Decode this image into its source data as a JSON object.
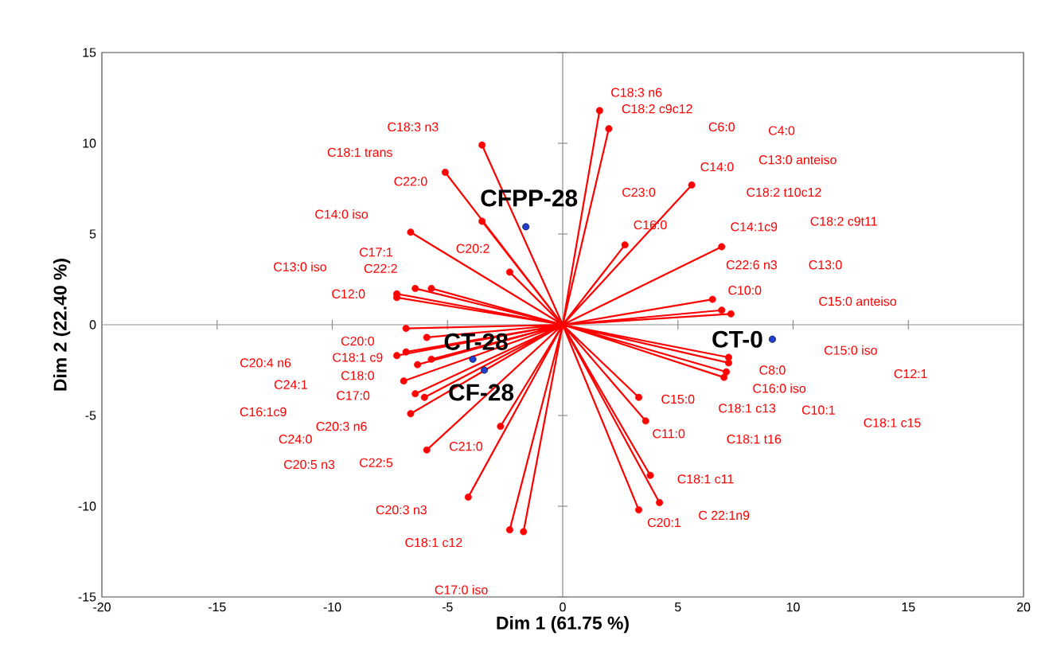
{
  "chart_data": {
    "type": "scatter",
    "xlabel": "Dim 1 (61.75 %)",
    "ylabel": "Dim 2 (22.40 %)",
    "xlim": [
      -20,
      20
    ],
    "ylim": [
      -15,
      15
    ],
    "xticks": [
      -20,
      -15,
      -10,
      -5,
      0,
      5,
      10,
      15,
      20
    ],
    "yticks": [
      -15,
      -10,
      -5,
      0,
      5,
      10,
      15
    ],
    "series": [
      {
        "type": "line",
        "marker": "none",
        "color": "#ff0000",
        "x": [
          0,
          -3.5,
          0,
          -5.1,
          0,
          -3.5,
          0,
          -6.6,
          0,
          -2.3,
          0,
          -6.4,
          0,
          -5.7,
          0,
          -7.2,
          0,
          -7.2,
          0,
          -6.8,
          0,
          1.6,
          0,
          2.0,
          0,
          5.6,
          0,
          2.7,
          0,
          6.9,
          0,
          6.5,
          0,
          6.9,
          0,
          7.3,
          0,
          -5.9,
          0,
          -6.8,
          0,
          -7.2,
          0,
          -6.3,
          0,
          -5.7,
          0,
          -6.9,
          0,
          -6.4,
          0,
          -6.0,
          0,
          -6.6,
          0,
          -2.7,
          0,
          -5.9,
          0,
          -4.1,
          0,
          -2.3,
          0,
          -1.7,
          0,
          7.2,
          0,
          7.2,
          0,
          7.1,
          0,
          7.0,
          0,
          3.3,
          0,
          3.6,
          0,
          3.8,
          0,
          4.2,
          0,
          3.3
        ],
        "values": [
          0,
          9.9,
          0,
          8.4,
          0,
          5.7,
          0,
          5.1,
          0,
          2.9,
          0,
          2.0,
          0,
          2.0,
          0,
          1.7,
          0,
          1.5,
          0,
          -0.2,
          0,
          11.8,
          0,
          10.8,
          0,
          7.7,
          0,
          4.4,
          0,
          4.3,
          0,
          1.4,
          0,
          0.8,
          0,
          0.6,
          0,
          -0.7,
          0,
          -1.5,
          0,
          -1.7,
          0,
          -2.2,
          0,
          -1.9,
          0,
          -3.1,
          0,
          -3.8,
          0,
          -4.0,
          0,
          -4.9,
          0,
          -5.6,
          0,
          -6.9,
          0,
          -9.5,
          0,
          -11.3,
          0,
          -11.4,
          0,
          -1.8,
          0,
          -2.1,
          0,
          -2.6,
          0,
          -2.9,
          0,
          -4.0,
          0,
          -5.3,
          0,
          -8.3,
          0,
          -9.8,
          0,
          -10.2
        ]
      },
      {
        "marker": "circle",
        "color": "#ff0000",
        "x": [
          -3.5,
          -5.1,
          -3.5,
          -6.6,
          -2.3,
          -6.4,
          -5.7,
          -7.2,
          -7.2,
          -6.8,
          1.6,
          2.0,
          5.6,
          2.7,
          6.9,
          6.5,
          6.9,
          7.3,
          -5.9,
          -6.8,
          -7.2,
          -6.3,
          -5.7,
          -6.9,
          -6.4,
          -6.0,
          -6.6,
          -2.7,
          -5.9,
          -4.1,
          -2.3,
          -1.7,
          7.2,
          7.2,
          7.1,
          7.0,
          3.3,
          3.6,
          3.8,
          4.2,
          3.3
        ],
        "values": [
          9.9,
          8.4,
          5.7,
          5.1,
          2.9,
          2.0,
          2.0,
          1.7,
          1.5,
          -0.2,
          11.8,
          10.8,
          7.7,
          4.4,
          4.3,
          1.4,
          0.8,
          0.6,
          -0.7,
          -1.5,
          -1.7,
          -2.2,
          -1.9,
          -3.1,
          -3.8,
          -4.0,
          -4.9,
          -5.6,
          -6.9,
          -9.5,
          -11.3,
          -11.4,
          -1.8,
          -2.1,
          -2.6,
          -2.9,
          -4.0,
          -5.3,
          -8.3,
          -9.8,
          -10.2
        ]
      },
      {
        "name": "CFPP-28",
        "marker": "circle",
        "color": "#1f3fd0",
        "x": [
          -1.6
        ],
        "values": [
          5.4
        ]
      },
      {
        "name": "CT-28",
        "marker": "circle",
        "color": "#1f3fd0",
        "x": [
          -3.9
        ],
        "values": [
          -1.9
        ]
      },
      {
        "name": "CF-28",
        "marker": "circle",
        "color": "#1f3fd0",
        "x": [
          -3.4
        ],
        "values": [
          -2.5
        ]
      },
      {
        "name": "CT-0",
        "marker": "circle",
        "color": "#1f3fd0",
        "x": [
          9.1
        ],
        "values": [
          -0.8
        ]
      }
    ],
    "annotations": [
      "C18:3 n3",
      "C18:1 trans",
      "C22:0",
      "C14:0 iso",
      "C20:2",
      "C17:1",
      "C13:0 iso",
      "C22:2",
      "C12:0",
      "C18:3 n6",
      "C18:2 c9c12",
      "C6:0",
      "C4:0",
      "C14:0",
      "C13:0 anteiso",
      "C23:0",
      "C18:2 t10c12",
      "C16:0",
      "C14:1c9",
      "C18:2 c9t11",
      "C22:6 n3",
      "C13:0",
      "C10:0",
      "C15:0 anteiso",
      "C20:0",
      "C20:4 n6",
      "C18:1 c9",
      "C18:0",
      "C24:1",
      "C17:0",
      "C16:1c9",
      "C20:3 n6",
      "C24:0",
      "C20:5 n3",
      "C22:5",
      "C21:0",
      "C20:3 n3",
      "C18:1 c12",
      "C17:0 iso",
      "C15:0 iso",
      "C8:0",
      "C12:1",
      "C16:0 iso",
      "C15:0",
      "C18:1 c13",
      "C10:1",
      "C18:1 c15",
      "C11:0",
      "C18:1 t16",
      "C18:1 c11",
      "C 22:1n9",
      "C20:1"
    ]
  }
}
